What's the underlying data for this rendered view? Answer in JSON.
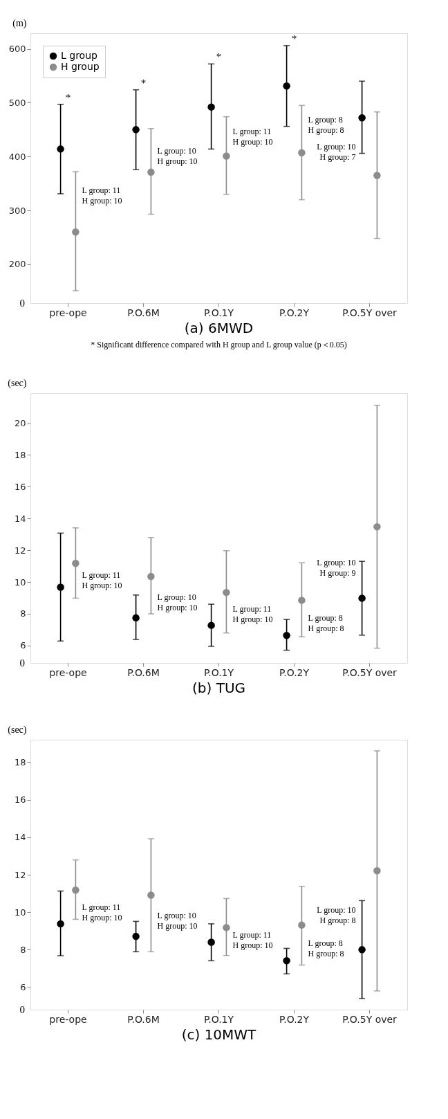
{
  "chart_data": [
    {
      "type": "scatter",
      "title": "(a) 6MWD",
      "ylabel": "(m)",
      "categories": [
        "pre-ope",
        "P.O.6M",
        "P.O.1Y",
        "P.O.2Y",
        "P.O.5Y over"
      ],
      "series": [
        {
          "name": "L group",
          "color": "#000000",
          "values": [
            414,
            450,
            492,
            531,
            472
          ],
          "errors": [
            [
              331,
              497
            ],
            [
              376,
              524
            ],
            [
              414,
              572
            ],
            [
              456,
              606
            ],
            [
              406,
              540
            ]
          ]
        },
        {
          "name": "H group",
          "color": "#8c8c8c",
          "values": [
            260,
            371,
            401,
            407,
            365
          ],
          "errors": [
            [
              151,
              372
            ],
            [
              293,
              452
            ],
            [
              330,
              474
            ],
            [
              320,
              495
            ],
            [
              248,
              483
            ]
          ]
        }
      ],
      "ylim": [
        128,
        629
      ],
      "yticks": [
        200,
        300,
        400,
        500,
        600
      ],
      "legend": "top left",
      "marker": "circle",
      "grid": false,
      "annotations": [
        "0",
        "L group: 11\nH group: 10",
        "L group: 10\nH group: 10",
        "L group: 11\nH group: 10",
        "L group: 8\nH group: 8",
        "L group: 10\nH group: 7",
        "*",
        "*",
        "*",
        "*",
        "* Significant difference compared with H group and L group value (p＜0.05)"
      ]
    },
    {
      "type": "scatter",
      "title": "(b) TUG",
      "ylabel": "(sec)",
      "categories": [
        "pre-ope",
        "P.O.6M",
        "P.O.1Y",
        "P.O.2Y",
        "P.O.5Y over"
      ],
      "series": [
        {
          "name": "L group",
          "color": "#000000",
          "values": [
            9.67,
            7.74,
            7.27,
            6.63,
            8.98
          ],
          "errors": [
            [
              6.28,
              13.08
            ],
            [
              6.38,
              9.18
            ],
            [
              5.95,
              8.6
            ],
            [
              5.7,
              7.64
            ],
            [
              6.65,
              11.3
            ]
          ]
        },
        {
          "name": "H group",
          "color": "#8c8c8c",
          "values": [
            11.18,
            10.35,
            9.34,
            8.85,
            13.48
          ],
          "errors": [
            [
              8.98,
              13.41
            ],
            [
              7.99,
              12.8
            ],
            [
              6.79,
              11.97
            ],
            [
              6.55,
              11.21
            ],
            [
              5.83,
              21.13
            ]
          ]
        }
      ],
      "ylim": [
        4.9,
        21.9
      ],
      "yticks": [
        6,
        8,
        10,
        12,
        14,
        16,
        18,
        20
      ],
      "legend": "top left",
      "marker": "circle",
      "grid": false,
      "annotations": [
        "0",
        "L group: 11\nH group: 10",
        "L group: 10\nH group: 10",
        "L group: 11\nH group: 10",
        "L group: 8\nH group: 8",
        "L group: 10\nH group: 9"
      ]
    },
    {
      "type": "scatter",
      "title": "(c) 10MWT",
      "ylabel": "(sec)",
      "categories": [
        "pre-ope",
        "P.O.6M",
        "P.O.1Y",
        "P.O.2Y",
        "P.O.5Y over"
      ],
      "series": [
        {
          "name": "L group",
          "color": "#000000",
          "values": [
            9.38,
            8.71,
            8.4,
            7.41,
            8.0
          ],
          "errors": [
            [
              7.68,
              11.13
            ],
            [
              7.89,
              9.51
            ],
            [
              7.41,
              9.38
            ],
            [
              6.71,
              8.07
            ],
            [
              5.4,
              10.62
            ]
          ]
        },
        {
          "name": "H group",
          "color": "#8c8c8c",
          "values": [
            11.18,
            10.91,
            9.18,
            9.31,
            12.21
          ],
          "errors": [
            [
              9.62,
              12.79
            ],
            [
              7.89,
              13.92
            ],
            [
              7.69,
              10.73
            ],
            [
              7.18,
              11.38
            ],
            [
              5.8,
              18.61
            ]
          ]
        }
      ],
      "ylim": [
        4.8,
        19.2
      ],
      "yticks": [
        6,
        8,
        10,
        12,
        14,
        16,
        18
      ],
      "legend": "top left",
      "marker": "circle",
      "grid": false,
      "annotations": [
        "0",
        "L group: 11\nH group: 10",
        "L group: 10\nH group: 10",
        "L group: 11\nH group: 10",
        "L group: 8\nH group: 8",
        "L group: 10\nH group: 8"
      ]
    }
  ]
}
